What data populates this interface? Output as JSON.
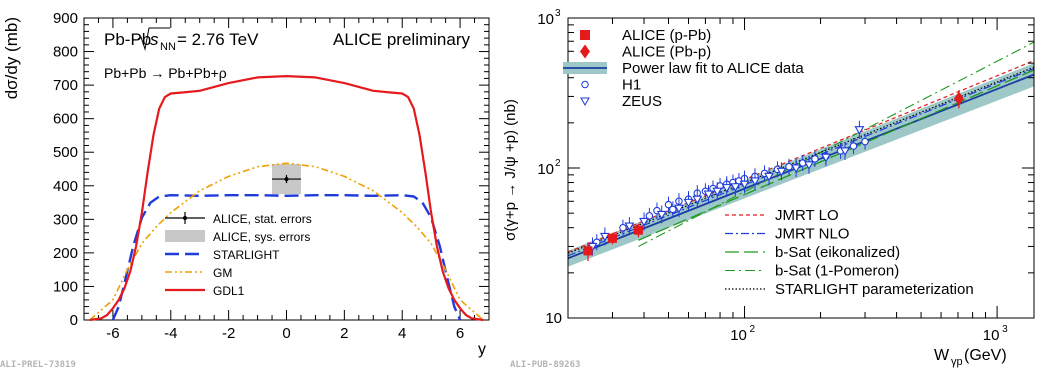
{
  "chart_data": [
    {
      "type": "line",
      "id": "left",
      "title_line1_main": "Pb-Pb",
      "title_line1_energy": "= 2.76 TeV",
      "title_line1_sqrt": "s",
      "title_line1_sub": "NN",
      "title_line2": "Pb+Pb → Pb+Pb+ρ",
      "preliminary": "ALICE preliminary",
      "xlabel": "y",
      "ylabel": "dσ/dy (mb)",
      "xlim": [
        -7,
        7
      ],
      "ylim": [
        0,
        900
      ],
      "xticks": [
        -6,
        -4,
        -2,
        0,
        2,
        4,
        6
      ],
      "yticks": [
        0,
        100,
        200,
        300,
        400,
        500,
        600,
        700,
        800,
        900
      ],
      "legend_placement": "bottom-left",
      "tag": "ALI-PREL-73819",
      "colors": {
        "starlight": "#1f3bdb",
        "gm": "#f0a000",
        "gdl1": "#e41a1c",
        "band": "#c8c8c8"
      },
      "data_point": {
        "x": 0,
        "y": 420,
        "stat_err": 12,
        "sys_err": 45,
        "x_err": 0.5
      },
      "legend": [
        {
          "label": "ALICE, stat. errors",
          "style": "point"
        },
        {
          "label": "ALICE, sys. errors",
          "style": "band"
        },
        {
          "label": "STARLIGHT",
          "style": "dashed-blue"
        },
        {
          "label": "GM",
          "style": "dashdot-orange"
        },
        {
          "label": "GDL1",
          "style": "solid-red"
        }
      ],
      "series": [
        {
          "name": "STARLIGHT",
          "x": [
            -6.0,
            -5.8,
            -5.6,
            -5.3,
            -5.0,
            -4.7,
            -4.4,
            -4.0,
            -3.0,
            -2.0,
            -1.0,
            0,
            1.0,
            2.0,
            3.0,
            4.0,
            4.4,
            4.7,
            5.0,
            5.3,
            5.6,
            5.8,
            6.0
          ],
          "y": [
            0,
            40,
            110,
            220,
            305,
            350,
            368,
            372,
            370,
            372,
            372,
            370,
            372,
            372,
            370,
            372,
            368,
            350,
            305,
            220,
            110,
            40,
            0
          ]
        },
        {
          "name": "GM",
          "x": [
            -6.8,
            -6.0,
            -5.5,
            -5.0,
            -4.5,
            -4.0,
            -3.0,
            -2.0,
            -1.0,
            0,
            1.0,
            2.0,
            3.0,
            4.0,
            4.5,
            5.0,
            5.5,
            6.0,
            6.8
          ],
          "y": [
            0,
            60,
            150,
            228,
            278,
            320,
            385,
            428,
            457,
            467,
            457,
            428,
            385,
            320,
            278,
            228,
            150,
            60,
            0
          ]
        },
        {
          "name": "GDL1",
          "x": [
            -6.8,
            -6.4,
            -6.2,
            -6.0,
            -5.8,
            -5.6,
            -5.4,
            -5.2,
            -5.0,
            -4.8,
            -4.6,
            -4.4,
            -4.2,
            -4.0,
            -3.6,
            -3.0,
            -2.0,
            -1.0,
            0,
            1.0,
            2.0,
            3.0,
            3.6,
            4.0,
            4.2,
            4.4,
            4.6,
            4.8,
            5.0,
            5.2,
            5.4,
            5.6,
            5.8,
            6.0,
            6.2,
            6.4,
            6.8
          ],
          "y": [
            0,
            5,
            15,
            35,
            60,
            95,
            145,
            220,
            320,
            440,
            550,
            630,
            665,
            675,
            678,
            683,
            706,
            723,
            727,
            723,
            706,
            683,
            678,
            675,
            665,
            630,
            550,
            440,
            320,
            220,
            145,
            95,
            60,
            35,
            15,
            5,
            0
          ]
        }
      ]
    },
    {
      "type": "scatter",
      "id": "right",
      "xlabel_main": "W",
      "xlabel_sub": "γp",
      "xlabel_unit": " (GeV)",
      "ylabel": "σ(γ+p → J/ψ +p) (nb)",
      "xscale": "log",
      "yscale": "log",
      "xlim": [
        20,
        1400
      ],
      "ylim": [
        10,
        1000
      ],
      "xtick_labels": [
        {
          "v": 100,
          "base": "10",
          "exp": "2"
        },
        {
          "v": 1000,
          "base": "10",
          "exp": "3"
        }
      ],
      "ytick_labels": [
        {
          "v": 10,
          "label": "10"
        },
        {
          "v": 100,
          "base": "10",
          "exp": "2"
        },
        {
          "v": 1000,
          "base": "10",
          "exp": "3"
        }
      ],
      "legend_placement": "top-left and bottom-right",
      "tag": "ALI-PUB-89263",
      "colors": {
        "alice": "#e41a1c",
        "hera": "#1f3bdb",
        "fit_band": "#9ec8c8",
        "fit_line": "#1a3fa0"
      },
      "legend_top": [
        {
          "label": "ALICE (p-Pb)",
          "marker": "square"
        },
        {
          "label": "ALICE (Pb-p)",
          "marker": "diamond"
        },
        {
          "label": "Power law fit to ALICE data",
          "marker": "band"
        },
        {
          "label": "H1",
          "marker": "circle"
        },
        {
          "label": "ZEUS",
          "marker": "triangle"
        }
      ],
      "legend_bottom": [
        {
          "label": "JMRT LO",
          "style": "red-dashed"
        },
        {
          "label": "JMRT NLO",
          "style": "blue-dashdot"
        },
        {
          "label": "b-Sat (eikonalized)",
          "style": "green-longdash"
        },
        {
          "label": "b-Sat (1-Pomeron)",
          "style": "green-dashdot"
        },
        {
          "label": "STARLIGHT parameterization",
          "style": "black-dotted"
        }
      ],
      "alice_pPb": [
        {
          "x": 24,
          "y": 28,
          "err": 4
        },
        {
          "x": 30,
          "y": 34,
          "err": 3
        },
        {
          "x": 38,
          "y": 38.5,
          "err": 4
        }
      ],
      "alice_Pbp": [
        {
          "x": 706,
          "y": 290,
          "err": 40
        }
      ],
      "h1": [
        {
          "x": 26,
          "y": 32
        },
        {
          "x": 33,
          "y": 40
        },
        {
          "x": 42,
          "y": 48
        },
        {
          "x": 45,
          "y": 52
        },
        {
          "x": 50,
          "y": 57
        },
        {
          "x": 52,
          "y": 53
        },
        {
          "x": 55,
          "y": 60
        },
        {
          "x": 60,
          "y": 62
        },
        {
          "x": 65,
          "y": 68
        },
        {
          "x": 70,
          "y": 70
        },
        {
          "x": 75,
          "y": 73
        },
        {
          "x": 80,
          "y": 76
        },
        {
          "x": 85,
          "y": 78
        },
        {
          "x": 90,
          "y": 80
        },
        {
          "x": 95,
          "y": 82
        },
        {
          "x": 100,
          "y": 85
        },
        {
          "x": 110,
          "y": 88
        },
        {
          "x": 120,
          "y": 92
        },
        {
          "x": 135,
          "y": 98
        },
        {
          "x": 150,
          "y": 102
        },
        {
          "x": 170,
          "y": 108
        },
        {
          "x": 190,
          "y": 115
        },
        {
          "x": 210,
          "y": 120
        },
        {
          "x": 240,
          "y": 130
        },
        {
          "x": 270,
          "y": 140
        },
        {
          "x": 300,
          "y": 150
        }
      ],
      "zeus": [
        {
          "x": 25,
          "y": 30
        },
        {
          "x": 28,
          "y": 35
        },
        {
          "x": 35,
          "y": 41
        },
        {
          "x": 40,
          "y": 44
        },
        {
          "x": 47,
          "y": 49
        },
        {
          "x": 55,
          "y": 54
        },
        {
          "x": 60,
          "y": 59
        },
        {
          "x": 65,
          "y": 62
        },
        {
          "x": 72,
          "y": 67
        },
        {
          "x": 78,
          "y": 70
        },
        {
          "x": 85,
          "y": 74
        },
        {
          "x": 92,
          "y": 75
        },
        {
          "x": 100,
          "y": 78
        },
        {
          "x": 110,
          "y": 82
        },
        {
          "x": 125,
          "y": 88
        },
        {
          "x": 140,
          "y": 95
        },
        {
          "x": 160,
          "y": 100
        },
        {
          "x": 180,
          "y": 105
        },
        {
          "x": 210,
          "y": 118
        },
        {
          "x": 250,
          "y": 130
        },
        {
          "x": 285,
          "y": 180
        }
      ],
      "curves": [
        {
          "name": "Power law fit",
          "x": [
            20,
            1400
          ],
          "y": [
            25,
            420
          ]
        },
        {
          "name": "JMRT LO",
          "x": [
            20,
            1400
          ],
          "y": [
            27.5,
            520
          ]
        },
        {
          "name": "JMRT NLO",
          "x": [
            20,
            1400
          ],
          "y": [
            26,
            460
          ]
        },
        {
          "name": "b-Sat (eikonalized)",
          "x": [
            38,
            1400
          ],
          "y": [
            33,
            450
          ]
        },
        {
          "name": "b-Sat (1-Pomeron)",
          "x": [
            38,
            1400
          ],
          "y": [
            30,
            690
          ]
        },
        {
          "name": "STARLIGHT parameterization",
          "x": [
            20,
            1400
          ],
          "y": [
            27,
            470
          ]
        }
      ],
      "fit_band": {
        "x": [
          20,
          1400
        ],
        "lower": [
          22,
          350
        ],
        "upper": [
          28,
          500
        ]
      }
    }
  ]
}
